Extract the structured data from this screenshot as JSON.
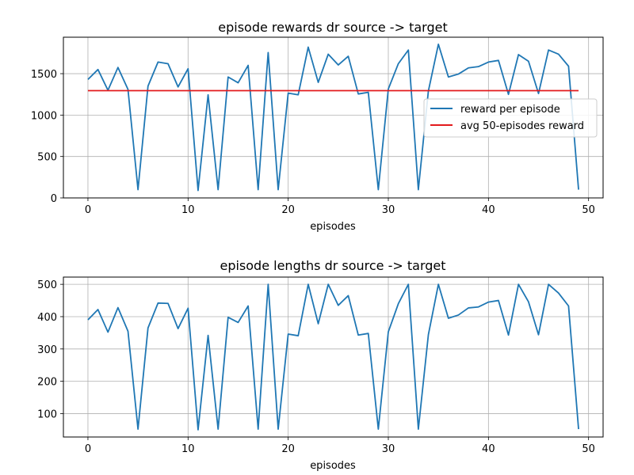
{
  "colors": {
    "series_reward": "#1f77b4",
    "series_avg": "#e31a1c",
    "grid": "#b0b0b0",
    "axes": "#000000",
    "background": "#ffffff"
  },
  "chart_data": [
    {
      "type": "line",
      "title": "episode rewards dr source -> target",
      "xlabel": "episodes",
      "ylabel": "",
      "xlim": [
        -2.45,
        51.45
      ],
      "ylim": [
        0,
        1940
      ],
      "xticks": [
        0,
        10,
        20,
        30,
        40,
        50
      ],
      "yticks": [
        0,
        500,
        1000,
        1500
      ],
      "grid": true,
      "legend": "right",
      "series": [
        {
          "name": "reward per episode",
          "color": "#1f77b4",
          "x": [
            0,
            1,
            2,
            3,
            4,
            5,
            6,
            7,
            8,
            9,
            10,
            11,
            12,
            13,
            14,
            15,
            16,
            17,
            18,
            19,
            20,
            21,
            22,
            23,
            24,
            25,
            26,
            27,
            28,
            29,
            30,
            31,
            32,
            33,
            34,
            35,
            36,
            37,
            38,
            39,
            40,
            41,
            42,
            43,
            44,
            45,
            46,
            47,
            48,
            49
          ],
          "values": [
            1430,
            1550,
            1300,
            1575,
            1310,
            100,
            1350,
            1640,
            1620,
            1340,
            1560,
            90,
            1245,
            100,
            1460,
            1390,
            1600,
            100,
            1755,
            100,
            1265,
            1245,
            1820,
            1395,
            1735,
            1605,
            1710,
            1255,
            1275,
            100,
            1315,
            1620,
            1785,
            100,
            1290,
            1855,
            1460,
            1495,
            1570,
            1585,
            1640,
            1660,
            1250,
            1730,
            1650,
            1260,
            1785,
            1735,
            1590,
            100
          ]
        },
        {
          "name": "avg 50-episodes reward",
          "color": "#e31a1c",
          "x": [
            0,
            49
          ],
          "values": [
            1295,
            1295
          ]
        }
      ]
    },
    {
      "type": "line",
      "title": "episode lengths dr source -> target",
      "xlabel": "episodes",
      "ylabel": "",
      "xlim": [
        -2.45,
        51.45
      ],
      "ylim": [
        27.6,
        522.4
      ],
      "xticks": [
        0,
        10,
        20,
        30,
        40,
        50
      ],
      "yticks": [
        100,
        200,
        300,
        400,
        500
      ],
      "grid": true,
      "series": [
        {
          "color": "#1f77b4",
          "x": [
            0,
            1,
            2,
            3,
            4,
            5,
            6,
            7,
            8,
            9,
            10,
            11,
            12,
            13,
            14,
            15,
            16,
            17,
            18,
            19,
            20,
            21,
            22,
            23,
            24,
            25,
            26,
            27,
            28,
            29,
            30,
            31,
            32,
            33,
            34,
            35,
            36,
            37,
            38,
            39,
            40,
            41,
            42,
            43,
            44,
            45,
            46,
            47,
            48,
            49
          ],
          "values": [
            390,
            422,
            352,
            428,
            355,
            52,
            365,
            442,
            441,
            363,
            426,
            50,
            342,
            52,
            398,
            382,
            433,
            52,
            500,
            52,
            346,
            341,
            500,
            378,
            500,
            435,
            465,
            343,
            348,
            52,
            353,
            440,
            500,
            52,
            344,
            500,
            395,
            405,
            427,
            430,
            445,
            450,
            343,
            500,
            446,
            344,
            500,
            473,
            433,
            52
          ]
        }
      ]
    }
  ]
}
